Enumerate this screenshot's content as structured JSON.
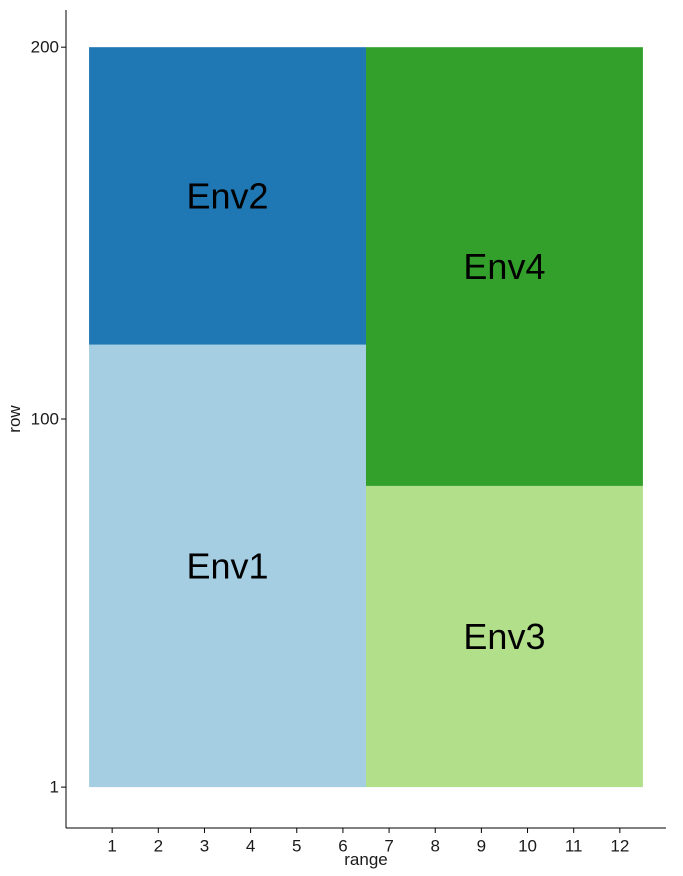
{
  "chart_data": {
    "type": "heatmap",
    "xlabel": "range",
    "ylabel": "row",
    "x_ticks": [
      1,
      2,
      3,
      4,
      5,
      6,
      7,
      8,
      9,
      10,
      11,
      12
    ],
    "y_ticks": [
      1,
      100,
      200
    ],
    "xlim": [
      0,
      13
    ],
    "ylim": [
      -10,
      210
    ],
    "grid": false,
    "blocks": [
      {
        "label": "Env1",
        "range_start": 1,
        "range_end": 6,
        "row_start": 1,
        "row_end": 120,
        "color": "#a6cee3"
      },
      {
        "label": "Env2",
        "range_start": 1,
        "range_end": 6,
        "row_start": 120,
        "row_end": 200,
        "color": "#1f78b4"
      },
      {
        "label": "Env3",
        "range_start": 7,
        "range_end": 12,
        "row_start": 1,
        "row_end": 82,
        "color": "#b2df8a"
      },
      {
        "label": "Env4",
        "range_start": 7,
        "range_end": 12,
        "row_start": 82,
        "row_end": 200,
        "color": "#33a02c"
      }
    ]
  }
}
